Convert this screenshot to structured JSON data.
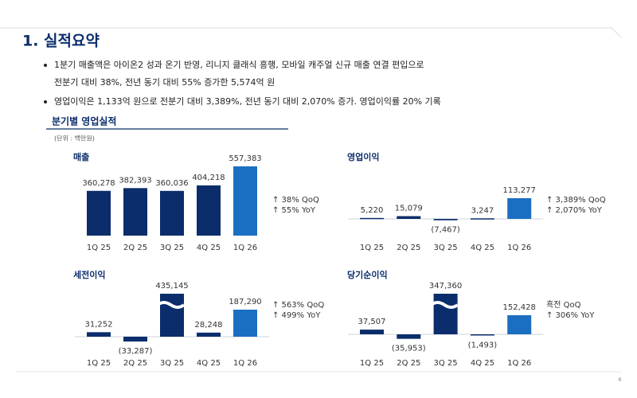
{
  "header": {
    "title": "1. 실적요약"
  },
  "bullets": [
    {
      "lines": [
        "1분기 매출액은 아이온2 성과 온기 반영, 리니지 클래식 흥행, 모바일 캐주얼 신규 매출 연결 편입으로",
        "전분기 대비 38%, 전년 동기 대비  55% 증가한 5,574억 원"
      ]
    },
    {
      "lines": [
        "영업이익은 1,133억 원으로 전분기 대비 3,389%, 전년 동기 대비 2,070% 증가. 영업이익률 20% 기록"
      ]
    }
  ],
  "section": {
    "title": "분기별 영업실적",
    "unit": "(단위 : 백만원)"
  },
  "page_number": "4",
  "chart_data": [
    {
      "type": "bar",
      "title": "매출",
      "axis_break": false,
      "categories": [
        "1Q 25",
        "2Q 25",
        "3Q 25",
        "4Q 25",
        "1Q 26"
      ],
      "values": [
        360278,
        382393,
        360036,
        404218,
        557383
      ],
      "value_labels": [
        "360,278",
        "382,393",
        "360,036",
        "404,218",
        "557,383"
      ],
      "colors": [
        "#0b2d6b",
        "#0b2d6b",
        "#0b2d6b",
        "#0b2d6b",
        "#1b6fc2"
      ],
      "annotations": [
        "↑ 38% QoQ",
        "↑ 55% YoY"
      ]
    },
    {
      "type": "bar",
      "title": "영업이익",
      "axis_break": false,
      "categories": [
        "1Q 25",
        "2Q 25",
        "3Q 25",
        "4Q 25",
        "1Q 26"
      ],
      "values": [
        5220,
        15079,
        -7467,
        3247,
        113277
      ],
      "value_labels": [
        "5,220",
        "15,079",
        "(7,467)",
        "3,247",
        "113,277"
      ],
      "colors": [
        "#0b2d6b",
        "#0b2d6b",
        "#0b2d6b",
        "#0b2d6b",
        "#1b6fc2"
      ],
      "annotations": [
        "↑ 3,389% QoQ",
        "↑ 2,070% YoY"
      ]
    },
    {
      "type": "bar",
      "title": "세전이익",
      "axis_break": true,
      "categories": [
        "1Q 25",
        "2Q 25",
        "3Q 25",
        "4Q 25",
        "1Q 26"
      ],
      "values": [
        31252,
        -33287,
        435145,
        28248,
        187290
      ],
      "value_labels": [
        "31,252",
        "(33,287)",
        "435,145",
        "28,248",
        "187,290"
      ],
      "colors": [
        "#0b2d6b",
        "#0b2d6b",
        "#0b2d6b",
        "#0b2d6b",
        "#1b6fc2"
      ],
      "annotations": [
        "↑ 563% QoQ",
        "↑ 499% YoY"
      ]
    },
    {
      "type": "bar",
      "title": "당기순이익",
      "axis_break": true,
      "categories": [
        "1Q 25",
        "2Q 25",
        "3Q 25",
        "4Q 25",
        "1Q 26"
      ],
      "values": [
        37507,
        -35953,
        347360,
        -1493,
        152428
      ],
      "value_labels": [
        "37,507",
        "(35,953)",
        "347,360",
        "(1,493)",
        "152,428"
      ],
      "colors": [
        "#0b2d6b",
        "#0b2d6b",
        "#0b2d6b",
        "#0b2d6b",
        "#1b6fc2"
      ],
      "annotations": [
        "흑전 QoQ",
        "↑ 306% YoY"
      ]
    }
  ]
}
